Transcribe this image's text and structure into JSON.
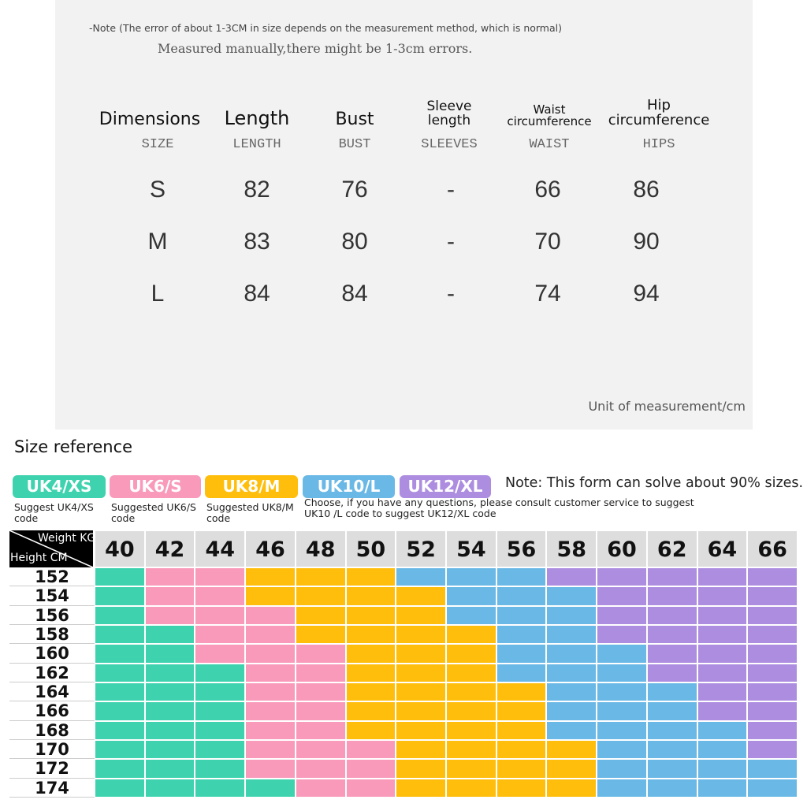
{
  "note": "-Note (The error of about 1-3CM in size depends on the measurement method, which is normal)",
  "note_handwritten": "Measured manually,there might be 1-3cm errors.",
  "measure_table": {
    "columns": [
      {
        "label": "Dimensions",
        "sub": "SIZE"
      },
      {
        "label": "Length",
        "sub": "LENGTH"
      },
      {
        "label": "Bust",
        "sub": "BUST"
      },
      {
        "label": "Sleeve length",
        "sub": "SLEEVES"
      },
      {
        "label": "Waist circumference",
        "sub": "WAIST"
      },
      {
        "label": "Hip circumference",
        "sub": "HIPS"
      }
    ],
    "rows": [
      [
        "S",
        82,
        76,
        "-",
        66,
        86
      ],
      [
        "M",
        83,
        80,
        "-",
        70,
        90
      ],
      [
        "L",
        84,
        84,
        "-",
        74,
        94
      ]
    ]
  },
  "unit": "Unit of measurement/cm",
  "size_reference": {
    "title": "Size reference",
    "sizes": [
      {
        "label": "UK4/XS",
        "color": "#3ed3ae",
        "suggest": "Suggest UK4/XS code"
      },
      {
        "label": "UK6/S",
        "color": "#f99abb",
        "suggest": "Suggested UK6/S code"
      },
      {
        "label": "UK8/M",
        "color": "#ffbe0b",
        "suggest": "Suggested UK8/M code"
      },
      {
        "label": "UK10/L",
        "color": "#6ab8e6"
      },
      {
        "label": "UK12/XL",
        "color": "#ad8de0"
      }
    ],
    "suggest_note": "Choose, if you have any questions, please consult customer service to suggest UK10 /L code to suggest UK12/XL code",
    "note": "Note: This form can solve about 90% sizes.",
    "weight_header": "Weight KG",
    "height_header": "Height CM",
    "weights": [
      40,
      42,
      44,
      46,
      48,
      50,
      52,
      54,
      56,
      58,
      60,
      62,
      64,
      66
    ],
    "heights": [
      152,
      154,
      156,
      158,
      160,
      162,
      164,
      166,
      168,
      170,
      172,
      174
    ],
    "cells": [
      [
        "#3ed3ae",
        "#f99abb",
        "#f99abb",
        "#ffbe0b",
        "#ffbe0b",
        "#ffbe0b",
        "#6ab8e6",
        "#6ab8e6",
        "#6ab8e6",
        "#ad8de0",
        "#ad8de0",
        "#ad8de0",
        "#ad8de0",
        "#ad8de0"
      ],
      [
        "#3ed3ae",
        "#f99abb",
        "#f99abb",
        "#ffbe0b",
        "#ffbe0b",
        "#ffbe0b",
        "#ffbe0b",
        "#6ab8e6",
        "#6ab8e6",
        "#6ab8e6",
        "#ad8de0",
        "#ad8de0",
        "#ad8de0",
        "#ad8de0"
      ],
      [
        "#3ed3ae",
        "#f99abb",
        "#f99abb",
        "#f99abb",
        "#ffbe0b",
        "#ffbe0b",
        "#ffbe0b",
        "#6ab8e6",
        "#6ab8e6",
        "#6ab8e6",
        "#ad8de0",
        "#ad8de0",
        "#ad8de0",
        "#ad8de0"
      ],
      [
        "#3ed3ae",
        "#3ed3ae",
        "#f99abb",
        "#f99abb",
        "#ffbe0b",
        "#ffbe0b",
        "#ffbe0b",
        "#ffbe0b",
        "#6ab8e6",
        "#6ab8e6",
        "#ad8de0",
        "#ad8de0",
        "#ad8de0",
        "#ad8de0"
      ],
      [
        "#3ed3ae",
        "#3ed3ae",
        "#f99abb",
        "#f99abb",
        "#f99abb",
        "#ffbe0b",
        "#ffbe0b",
        "#ffbe0b",
        "#6ab8e6",
        "#6ab8e6",
        "#6ab8e6",
        "#ad8de0",
        "#ad8de0",
        "#ad8de0"
      ],
      [
        "#3ed3ae",
        "#3ed3ae",
        "#3ed3ae",
        "#f99abb",
        "#f99abb",
        "#ffbe0b",
        "#ffbe0b",
        "#ffbe0b",
        "#6ab8e6",
        "#6ab8e6",
        "#6ab8e6",
        "#ad8de0",
        "#ad8de0",
        "#ad8de0"
      ],
      [
        "#3ed3ae",
        "#3ed3ae",
        "#3ed3ae",
        "#f99abb",
        "#f99abb",
        "#ffbe0b",
        "#ffbe0b",
        "#ffbe0b",
        "#ffbe0b",
        "#6ab8e6",
        "#6ab8e6",
        "#6ab8e6",
        "#ad8de0",
        "#ad8de0"
      ],
      [
        "#3ed3ae",
        "#3ed3ae",
        "#3ed3ae",
        "#f99abb",
        "#f99abb",
        "#ffbe0b",
        "#ffbe0b",
        "#ffbe0b",
        "#ffbe0b",
        "#6ab8e6",
        "#6ab8e6",
        "#6ab8e6",
        "#ad8de0",
        "#ad8de0"
      ],
      [
        "#3ed3ae",
        "#3ed3ae",
        "#3ed3ae",
        "#f99abb",
        "#f99abb",
        "#ffbe0b",
        "#ffbe0b",
        "#ffbe0b",
        "#ffbe0b",
        "#6ab8e6",
        "#6ab8e6",
        "#6ab8e6",
        "#6ab8e6",
        "#ad8de0"
      ],
      [
        "#3ed3ae",
        "#3ed3ae",
        "#3ed3ae",
        "#f99abb",
        "#f99abb",
        "#f99abb",
        "#ffbe0b",
        "#ffbe0b",
        "#ffbe0b",
        "#ffbe0b",
        "#6ab8e6",
        "#6ab8e6",
        "#6ab8e6",
        "#ad8de0"
      ],
      [
        "#3ed3ae",
        "#3ed3ae",
        "#3ed3ae",
        "#f99abb",
        "#f99abb",
        "#f99abb",
        "#ffbe0b",
        "#ffbe0b",
        "#ffbe0b",
        "#ffbe0b",
        "#6ab8e6",
        "#6ab8e6",
        "#6ab8e6",
        "#6ab8e6"
      ],
      [
        "#3ed3ae",
        "#3ed3ae",
        "#3ed3ae",
        "#3ed3ae",
        "#f99abb",
        "#f99abb",
        "#ffbe0b",
        "#ffbe0b",
        "#ffbe0b",
        "#ffbe0b",
        "#6ab8e6",
        "#6ab8e6",
        "#6ab8e6",
        "#6ab8e6"
      ]
    ]
  }
}
